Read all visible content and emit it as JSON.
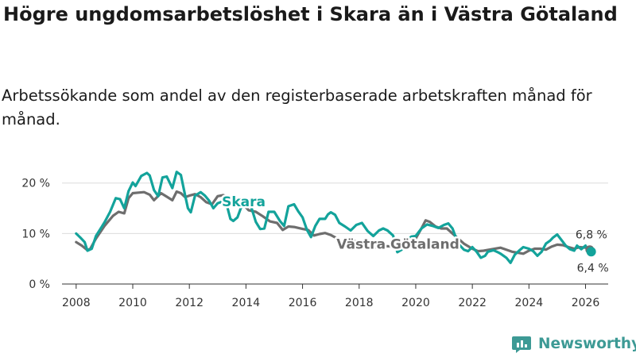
{
  "title": "Högre ungdomsarbetslöshet i Skara än i Västra Götaland",
  "subtitle": "Arbetssökande som andel av den registerbaserade arbetskraften månad för månad.",
  "brand": {
    "name": "Newsworthy",
    "icon": "newsworthy-logo-icon"
  },
  "colors": {
    "skara": "#13a39b",
    "vg": "#6e6e6e",
    "grid": "#dcdcdc",
    "axis": "#333333"
  },
  "chart_data": {
    "type": "line",
    "xlim": [
      2007.5,
      2026.8
    ],
    "ylim": [
      0,
      22
    ],
    "y_ticks": [
      {
        "value": 0,
        "label": "0 %"
      },
      {
        "value": 10,
        "label": "10 %"
      },
      {
        "value": 20,
        "label": "20 %"
      }
    ],
    "x_ticks": [
      {
        "value": 2008,
        "label": "2008"
      },
      {
        "value": 2010,
        "label": "2010"
      },
      {
        "value": 2012,
        "label": "2012"
      },
      {
        "value": 2014,
        "label": "2014"
      },
      {
        "value": 2016,
        "label": "2016"
      },
      {
        "value": 2018,
        "label": "2018"
      },
      {
        "value": 2020,
        "label": "2020"
      },
      {
        "value": 2022,
        "label": "2022"
      },
      {
        "value": 2024,
        "label": "2024"
      },
      {
        "value": 2026,
        "label": "2026"
      }
    ],
    "series": [
      {
        "name": "Västra Götaland",
        "label": "Västra Götaland",
        "color": "#6e6e6e",
        "last_label": "6,8 %",
        "points": [
          [
            2008.0,
            8.3
          ],
          [
            2008.2,
            7.6
          ],
          [
            2008.4,
            6.7
          ],
          [
            2008.5,
            7.0
          ],
          [
            2008.7,
            9.0
          ],
          [
            2009.0,
            11.5
          ],
          [
            2009.3,
            13.5
          ],
          [
            2009.5,
            14.3
          ],
          [
            2009.7,
            14.0
          ],
          [
            2009.85,
            17.0
          ],
          [
            2010.0,
            18.0
          ],
          [
            2010.2,
            18.1
          ],
          [
            2010.4,
            18.2
          ],
          [
            2010.6,
            17.7
          ],
          [
            2010.75,
            16.6
          ],
          [
            2011.0,
            18.0
          ],
          [
            2011.2,
            17.3
          ],
          [
            2011.4,
            16.6
          ],
          [
            2011.55,
            18.3
          ],
          [
            2011.7,
            18.0
          ],
          [
            2011.85,
            17.2
          ],
          [
            2012.0,
            17.5
          ],
          [
            2012.2,
            17.8
          ],
          [
            2012.4,
            17.2
          ],
          [
            2012.6,
            16.2
          ],
          [
            2012.8,
            15.8
          ],
          [
            2013.0,
            17.4
          ],
          [
            2013.2,
            17.6
          ],
          [
            2013.45,
            17.1
          ],
          [
            2013.7,
            16.1
          ],
          [
            2013.9,
            15.8
          ],
          [
            2014.1,
            14.6
          ],
          [
            2014.35,
            14.3
          ],
          [
            2014.6,
            13.4
          ],
          [
            2014.85,
            12.4
          ],
          [
            2015.1,
            12.1
          ],
          [
            2015.3,
            10.7
          ],
          [
            2015.5,
            11.4
          ],
          [
            2015.7,
            11.3
          ],
          [
            2016.0,
            10.9
          ],
          [
            2016.2,
            10.7
          ],
          [
            2016.4,
            9.6
          ],
          [
            2016.6,
            9.9
          ],
          [
            2016.8,
            10.1
          ],
          [
            2017.0,
            9.7
          ],
          [
            2017.2,
            9.1
          ],
          [
            2017.4,
            8.0
          ],
          [
            2017.6,
            8.4
          ],
          [
            2017.8,
            8.6
          ],
          [
            2018.0,
            8.2
          ],
          [
            2018.2,
            7.6
          ],
          [
            2018.4,
            7.0
          ],
          [
            2018.6,
            7.3
          ],
          [
            2018.8,
            7.4
          ],
          [
            2019.0,
            7.5
          ],
          [
            2019.2,
            7.4
          ],
          [
            2019.4,
            7.3
          ],
          [
            2019.6,
            8.5
          ],
          [
            2019.8,
            8.4
          ],
          [
            2020.0,
            9.0
          ],
          [
            2020.2,
            11.0
          ],
          [
            2020.35,
            12.6
          ],
          [
            2020.5,
            12.3
          ],
          [
            2020.7,
            11.4
          ],
          [
            2020.9,
            11.0
          ],
          [
            2021.1,
            11.0
          ],
          [
            2021.3,
            10.0
          ],
          [
            2021.5,
            9.0
          ],
          [
            2021.7,
            8.0
          ],
          [
            2022.0,
            7.0
          ],
          [
            2022.2,
            6.5
          ],
          [
            2022.4,
            6.6
          ],
          [
            2022.6,
            6.8
          ],
          [
            2022.8,
            7.0
          ],
          [
            2023.0,
            7.2
          ],
          [
            2023.2,
            6.8
          ],
          [
            2023.4,
            6.4
          ],
          [
            2023.6,
            6.2
          ],
          [
            2023.8,
            6.0
          ],
          [
            2024.0,
            6.6
          ],
          [
            2024.2,
            7.0
          ],
          [
            2024.4,
            7.0
          ],
          [
            2024.6,
            6.8
          ],
          [
            2024.8,
            7.4
          ],
          [
            2025.0,
            7.8
          ],
          [
            2025.2,
            7.7
          ],
          [
            2025.4,
            7.3
          ],
          [
            2025.6,
            7.0
          ],
          [
            2025.8,
            7.3
          ],
          [
            2026.0,
            7.2
          ],
          [
            2026.15,
            6.8
          ]
        ]
      },
      {
        "name": "Skara",
        "label": "Skara",
        "color": "#13a39b",
        "last_label": "6,4 %",
        "points": [
          [
            2008.0,
            10.0
          ],
          [
            2008.15,
            9.2
          ],
          [
            2008.3,
            8.3
          ],
          [
            2008.4,
            6.6
          ],
          [
            2008.55,
            7.0
          ],
          [
            2008.7,
            9.5
          ],
          [
            2009.0,
            12.2
          ],
          [
            2009.2,
            14.3
          ],
          [
            2009.4,
            17.0
          ],
          [
            2009.55,
            16.8
          ],
          [
            2009.7,
            15.0
          ],
          [
            2009.85,
            18.4
          ],
          [
            2010.0,
            20.1
          ],
          [
            2010.1,
            19.4
          ],
          [
            2010.3,
            21.4
          ],
          [
            2010.5,
            22.0
          ],
          [
            2010.6,
            21.5
          ],
          [
            2010.75,
            18.6
          ],
          [
            2010.9,
            17.4
          ],
          [
            2011.05,
            21.1
          ],
          [
            2011.2,
            21.3
          ],
          [
            2011.4,
            19.0
          ],
          [
            2011.55,
            22.2
          ],
          [
            2011.7,
            21.6
          ],
          [
            2011.85,
            17.6
          ],
          [
            2011.95,
            15.0
          ],
          [
            2012.05,
            14.2
          ],
          [
            2012.2,
            17.5
          ],
          [
            2012.4,
            18.2
          ],
          [
            2012.55,
            17.5
          ],
          [
            2012.7,
            16.5
          ],
          [
            2012.85,
            15.0
          ],
          [
            2013.0,
            16.0
          ],
          [
            2013.15,
            16.3
          ],
          [
            2013.3,
            16.1
          ],
          [
            2013.45,
            12.9
          ],
          [
            2013.55,
            12.5
          ],
          [
            2013.7,
            13.2
          ],
          [
            2013.85,
            15.5
          ],
          [
            2014.0,
            15.5
          ],
          [
            2014.15,
            15.9
          ],
          [
            2014.35,
            12.3
          ],
          [
            2014.5,
            10.9
          ],
          [
            2014.65,
            11.0
          ],
          [
            2014.8,
            14.3
          ],
          [
            2015.0,
            14.3
          ],
          [
            2015.2,
            12.5
          ],
          [
            2015.35,
            11.5
          ],
          [
            2015.5,
            15.4
          ],
          [
            2015.7,
            15.8
          ],
          [
            2015.85,
            14.4
          ],
          [
            2016.0,
            13.2
          ],
          [
            2016.15,
            10.8
          ],
          [
            2016.3,
            9.3
          ],
          [
            2016.45,
            11.5
          ],
          [
            2016.6,
            12.9
          ],
          [
            2016.8,
            12.9
          ],
          [
            2016.9,
            13.8
          ],
          [
            2017.0,
            14.2
          ],
          [
            2017.15,
            13.7
          ],
          [
            2017.3,
            12.1
          ],
          [
            2017.5,
            11.4
          ],
          [
            2017.7,
            10.6
          ],
          [
            2017.9,
            11.7
          ],
          [
            2018.1,
            12.1
          ],
          [
            2018.3,
            10.5
          ],
          [
            2018.5,
            9.5
          ],
          [
            2018.7,
            10.6
          ],
          [
            2018.85,
            11.0
          ],
          [
            2019.0,
            10.6
          ],
          [
            2019.2,
            9.6
          ],
          [
            2019.35,
            6.3
          ],
          [
            2019.5,
            6.8
          ],
          [
            2019.7,
            8.8
          ],
          [
            2019.85,
            9.4
          ],
          [
            2020.0,
            9.5
          ],
          [
            2020.2,
            11.0
          ],
          [
            2020.4,
            11.8
          ],
          [
            2020.6,
            11.5
          ],
          [
            2020.8,
            11.1
          ],
          [
            2021.0,
            11.7
          ],
          [
            2021.15,
            12.0
          ],
          [
            2021.3,
            11.0
          ],
          [
            2021.5,
            8.0
          ],
          [
            2021.7,
            6.8
          ],
          [
            2021.85,
            6.5
          ],
          [
            2022.0,
            7.3
          ],
          [
            2022.15,
            6.4
          ],
          [
            2022.3,
            5.2
          ],
          [
            2022.45,
            5.6
          ],
          [
            2022.55,
            6.4
          ],
          [
            2022.75,
            6.7
          ],
          [
            2022.9,
            6.3
          ],
          [
            2023.0,
            6.0
          ],
          [
            2023.2,
            5.2
          ],
          [
            2023.35,
            4.2
          ],
          [
            2023.5,
            5.8
          ],
          [
            2023.65,
            6.6
          ],
          [
            2023.8,
            7.3
          ],
          [
            2024.0,
            7.0
          ],
          [
            2024.15,
            6.5
          ],
          [
            2024.3,
            5.6
          ],
          [
            2024.45,
            6.4
          ],
          [
            2024.6,
            8.0
          ],
          [
            2024.75,
            8.6
          ],
          [
            2024.85,
            9.2
          ],
          [
            2025.0,
            9.8
          ],
          [
            2025.15,
            8.7
          ],
          [
            2025.3,
            7.6
          ],
          [
            2025.45,
            6.9
          ],
          [
            2025.6,
            6.6
          ],
          [
            2025.7,
            7.6
          ],
          [
            2025.85,
            6.9
          ],
          [
            2026.0,
            7.6
          ],
          [
            2026.1,
            6.5
          ],
          [
            2026.2,
            6.4
          ]
        ]
      }
    ]
  }
}
